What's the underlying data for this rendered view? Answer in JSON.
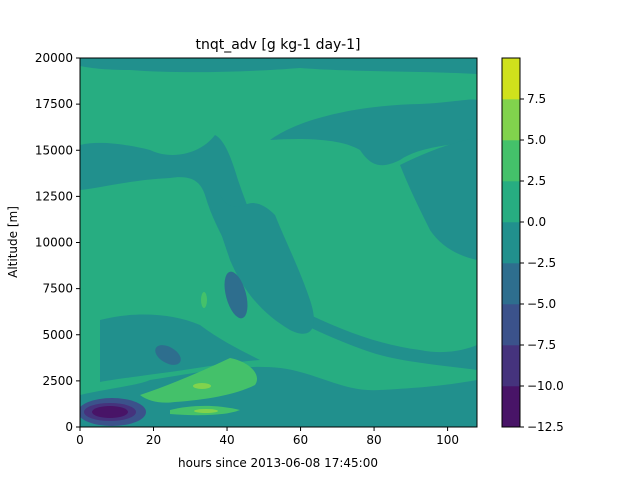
{
  "chart_data": {
    "type": "contour",
    "title": "tnqt_adv [g kg-1 day-1]",
    "xlabel": "hours since 2013-06-08 17:45:00",
    "ylabel": "Altitude [m]",
    "xlim": [
      0,
      108
    ],
    "ylim": [
      0,
      20000
    ],
    "x_ticks": [
      0,
      20,
      40,
      60,
      80,
      100
    ],
    "y_ticks": [
      0,
      2500,
      5000,
      7500,
      10000,
      12500,
      15000,
      17500,
      20000
    ],
    "colorbar": {
      "levels": [
        -12.5,
        -10.0,
        -7.5,
        -5.0,
        -2.5,
        0.0,
        2.5,
        5.0,
        7.5
      ],
      "tick_labels": [
        "−12.5",
        "−10.0",
        "−7.5",
        "−5.0",
        "−2.5",
        "0.0",
        "2.5",
        "5.0",
        "7.5"
      ],
      "colors": [
        "#481467",
        "#45337d",
        "#3b528b",
        "#2e6e8e",
        "#21908d",
        "#27ad81",
        "#44c16a",
        "#81d34d",
        "#d0e11c"
      ]
    },
    "background_band": [
      0.0,
      2.5
    ],
    "regions": [
      {
        "band": [
          -2.5,
          0.0
        ],
        "desc": "upper layer",
        "y_range": [
          17300,
          19500
        ],
        "x_range": [
          14,
          108
        ]
      },
      {
        "band": [
          -2.5,
          0.0
        ],
        "desc": "mid-level band",
        "y_range": [
          12000,
          16000
        ],
        "x_range": [
          0,
          108
        ]
      },
      {
        "band": [
          -2.5,
          0.0
        ],
        "desc": "lower layer",
        "y_range": [
          2000,
          6500
        ],
        "x_range": [
          5,
          108
        ]
      },
      {
        "band": [
          2.5,
          5.0
        ],
        "desc": "positive lobe",
        "y_range": [
          1500,
          3600
        ],
        "x_range": [
          18,
          48
        ]
      },
      {
        "band": [
          5.0,
          7.5
        ],
        "desc": "peak",
        "y_range": [
          2100,
          2400
        ],
        "x_range": [
          31,
          35
        ]
      },
      {
        "band": [
          -12.5,
          -10.0
        ],
        "desc": "surface minimum",
        "y_range": [
          500,
          900
        ],
        "x_range": [
          6,
          11
        ]
      }
    ]
  }
}
